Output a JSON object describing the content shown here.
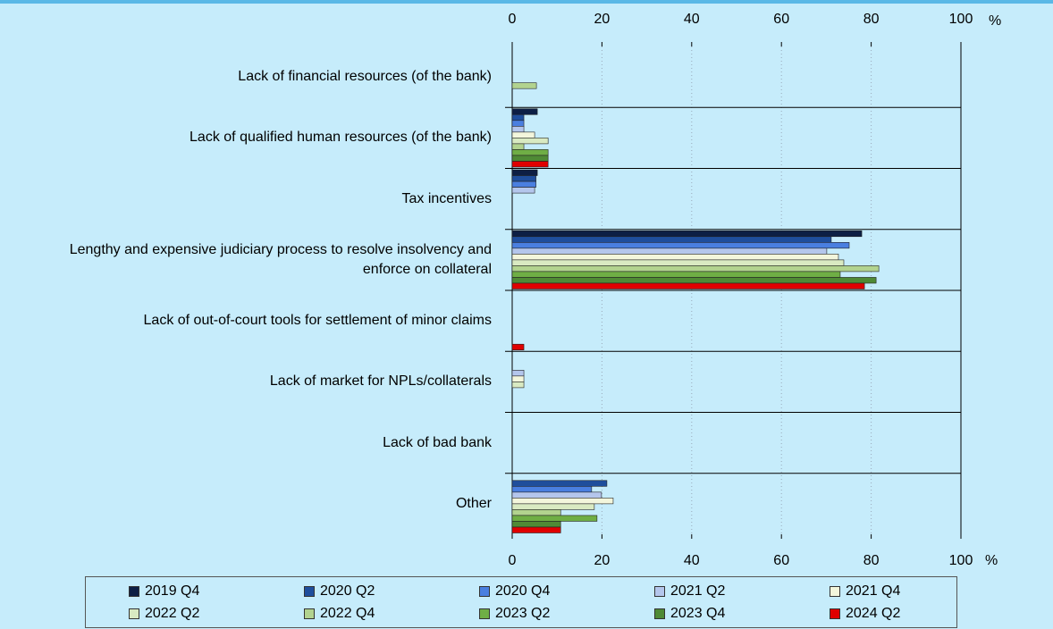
{
  "chart_data": {
    "type": "hbar",
    "categories": [
      "Lack of financial resources (of the bank)",
      "Lack of qualified human resources (of the bank)",
      "Tax incentives",
      "Lengthy and expensive judiciary process to resolve insolvency and enforce on collateral",
      "Lack of out-of-court tools for settlement of minor claims",
      "Lack of market for NPLs/collaterals",
      "Lack of bad bank",
      "Other"
    ],
    "series": [
      {
        "name": "2019 Q4",
        "color": "#0d1f45",
        "values": [
          0,
          5.6,
          5.6,
          77.9,
          0,
          0,
          0,
          0
        ]
      },
      {
        "name": "2020 Q2",
        "color": "#1f4e9c",
        "values": [
          0,
          2.6,
          5.3,
          71.1,
          0,
          0,
          0,
          21.1
        ]
      },
      {
        "name": "2020 Q4",
        "color": "#4a7fe0",
        "values": [
          0,
          2.6,
          5.3,
          75.1,
          0,
          0,
          0,
          17.7
        ]
      },
      {
        "name": "2021 Q2",
        "color": "#b4c6ec",
        "values": [
          0,
          2.6,
          5.0,
          70.1,
          0,
          2.6,
          0,
          19.9
        ]
      },
      {
        "name": "2021 Q4",
        "color": "#f3f6dc",
        "values": [
          0,
          5.0,
          0,
          72.7,
          0,
          2.6,
          0,
          22.5
        ]
      },
      {
        "name": "2022 Q2",
        "color": "#d9eac2",
        "values": [
          0,
          8.0,
          0,
          73.9,
          0,
          2.6,
          0,
          18.3
        ]
      },
      {
        "name": "2022 Q4",
        "color": "#b2d38f",
        "values": [
          5.4,
          2.6,
          0,
          81.7,
          0,
          0,
          0,
          10.8
        ]
      },
      {
        "name": "2023 Q2",
        "color": "#6fae45",
        "values": [
          0,
          8.0,
          0,
          73.1,
          0,
          0,
          0,
          18.9
        ]
      },
      {
        "name": "2023 Q4",
        "color": "#4f8a35",
        "values": [
          0,
          8.0,
          0,
          81.1,
          0,
          0,
          0,
          10.8
        ]
      },
      {
        "name": "2024 Q2",
        "color": "#e00000",
        "values": [
          0,
          8.0,
          0,
          78.5,
          2.6,
          0,
          0,
          10.8
        ]
      }
    ],
    "xlim": [
      0,
      100
    ],
    "xticks": [
      0,
      20,
      40,
      60,
      80,
      100
    ],
    "unit": "%",
    "grid": true
  }
}
